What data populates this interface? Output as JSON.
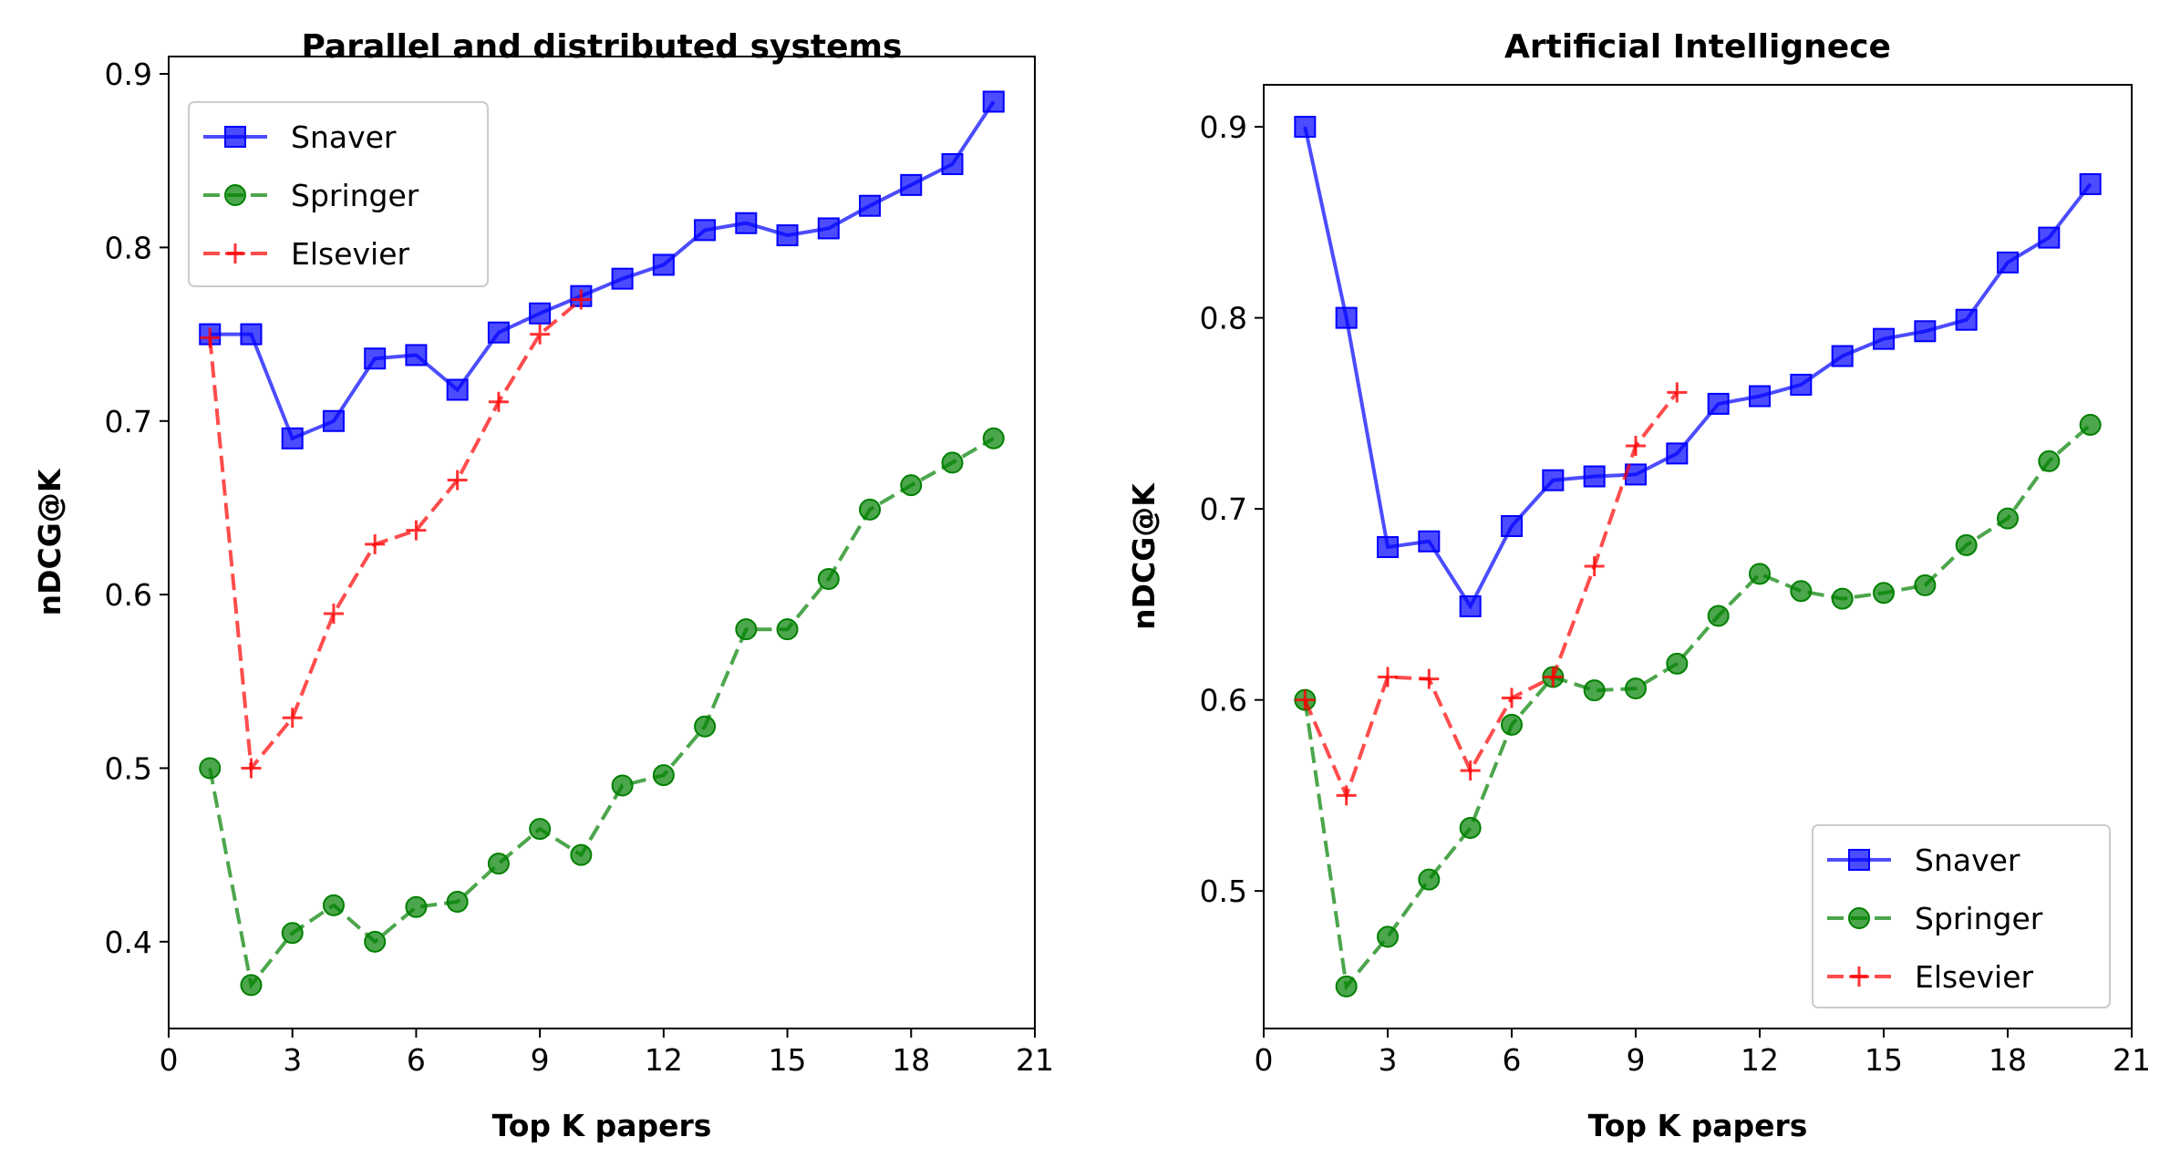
{
  "colors": {
    "Snaver": "#0000ff",
    "Springer": "#008000",
    "Elsevier": "#ff0000"
  },
  "chart_data": [
    {
      "type": "line",
      "title": "Parallel and distributed systems",
      "xlabel": "Top K papers",
      "ylabel": "nDCG@K",
      "xlim": [
        0,
        21
      ],
      "ylim": [
        0.35,
        0.91
      ],
      "xticks": [
        "0",
        "3",
        "6",
        "9",
        "12",
        "15",
        "18",
        "21"
      ],
      "yticks": [
        "0.4",
        "0.5",
        "0.6",
        "0.7",
        "0.8",
        "0.9"
      ],
      "legend_position": "upper-left",
      "series": [
        {
          "name": "Snaver",
          "marker": "square",
          "linestyle": "solid",
          "x": [
            1,
            2,
            3,
            4,
            5,
            6,
            7,
            8,
            9,
            10,
            11,
            12,
            13,
            14,
            15,
            16,
            17,
            18,
            19,
            20
          ],
          "y": [
            0.75,
            0.75,
            0.69,
            0.7,
            0.736,
            0.738,
            0.718,
            0.751,
            0.762,
            0.772,
            0.782,
            0.79,
            0.81,
            0.814,
            0.807,
            0.811,
            0.824,
            0.836,
            0.848,
            0.884
          ]
        },
        {
          "name": "Springer",
          "marker": "circle",
          "linestyle": "dashed",
          "x": [
            1,
            2,
            3,
            4,
            5,
            6,
            7,
            8,
            9,
            10,
            11,
            12,
            13,
            14,
            15,
            16,
            17,
            18,
            19,
            20
          ],
          "y": [
            0.5,
            0.375,
            0.405,
            0.421,
            0.4,
            0.42,
            0.423,
            0.445,
            0.465,
            0.45,
            0.49,
            0.496,
            0.524,
            0.58,
            0.58,
            0.609,
            0.649,
            0.663,
            0.676,
            0.69
          ]
        },
        {
          "name": "Elsevier",
          "marker": "plus",
          "linestyle": "dashed",
          "x": [
            1,
            2,
            3,
            4,
            5,
            6,
            7,
            8,
            9,
            10
          ],
          "y": [
            0.748,
            0.5,
            0.529,
            0.589,
            0.629,
            0.637,
            0.666,
            0.711,
            0.75,
            0.77
          ]
        }
      ]
    },
    {
      "type": "line",
      "title": "Artificial Intellignece",
      "xlabel": "Top K papers",
      "ylabel": "nDCG@K",
      "xlim": [
        0,
        21
      ],
      "ylim": [
        0.428,
        0.922
      ],
      "xticks": [
        "0",
        "3",
        "6",
        "9",
        "12",
        "15",
        "18",
        "21"
      ],
      "yticks": [
        "0.5",
        "0.6",
        "0.7",
        "0.8",
        "0.9"
      ],
      "legend_position": "lower-right",
      "series": [
        {
          "name": "Snaver",
          "marker": "square",
          "linestyle": "solid",
          "x": [
            1,
            2,
            3,
            4,
            5,
            6,
            7,
            8,
            9,
            10,
            11,
            12,
            13,
            14,
            15,
            16,
            17,
            18,
            19,
            20
          ],
          "y": [
            0.9,
            0.8,
            0.68,
            0.683,
            0.649,
            0.691,
            0.715,
            0.717,
            0.718,
            0.729,
            0.755,
            0.759,
            0.765,
            0.78,
            0.789,
            0.793,
            0.799,
            0.829,
            0.842,
            0.87
          ]
        },
        {
          "name": "Springer",
          "marker": "circle",
          "linestyle": "dashed",
          "x": [
            1,
            2,
            3,
            4,
            5,
            6,
            7,
            8,
            9,
            10,
            11,
            12,
            13,
            14,
            15,
            16,
            17,
            18,
            19,
            20
          ],
          "y": [
            0.6,
            0.45,
            0.476,
            0.506,
            0.533,
            0.587,
            0.612,
            0.605,
            0.606,
            0.619,
            0.644,
            0.666,
            0.657,
            0.653,
            0.656,
            0.66,
            0.681,
            0.695,
            0.725,
            0.744
          ]
        },
        {
          "name": "Elsevier",
          "marker": "plus",
          "linestyle": "dashed",
          "x": [
            1,
            2,
            3,
            4,
            5,
            6,
            7,
            8,
            9,
            10
          ],
          "y": [
            0.6,
            0.55,
            0.612,
            0.611,
            0.563,
            0.601,
            0.612,
            0.67,
            0.733,
            0.761
          ]
        }
      ]
    }
  ]
}
